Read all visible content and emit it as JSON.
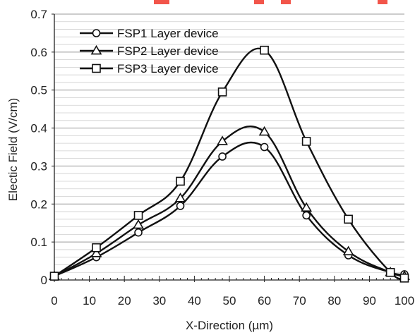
{
  "chart_data": {
    "type": "line",
    "title": "",
    "xlabel": "X-Direction (µm)",
    "ylabel": "Electic Field (V/cm)",
    "xlim": [
      0,
      100
    ],
    "ylim": [
      0,
      0.7
    ],
    "xticks": [
      "0",
      "10",
      "20",
      "30",
      "40",
      "50",
      "60",
      "70",
      "80",
      "90",
      "100"
    ],
    "yticks": [
      "0",
      "0.1",
      "0.2",
      "0.3",
      "0.4",
      "0.5",
      "0.6",
      "0.7"
    ],
    "grid": "horizontal",
    "legend_position": "top-left",
    "series": [
      {
        "name": "FSP1 Layer device",
        "marker": "circle",
        "color": "#111111",
        "x": [
          0,
          12,
          24,
          36,
          48,
          60,
          72,
          84,
          96,
          100
        ],
        "y": [
          0.01,
          0.06,
          0.125,
          0.195,
          0.325,
          0.35,
          0.17,
          0.065,
          0.02,
          0.015
        ]
      },
      {
        "name": "FSP2 Layer device",
        "marker": "triangle",
        "color": "#111111",
        "x": [
          0,
          12,
          24,
          36,
          48,
          60,
          72,
          84,
          96,
          100
        ],
        "y": [
          0.01,
          0.07,
          0.145,
          0.215,
          0.365,
          0.39,
          0.19,
          0.075,
          0.02,
          0.01
        ]
      },
      {
        "name": "FSP3 Layer device",
        "marker": "square",
        "color": "#111111",
        "x": [
          0,
          12,
          24,
          36,
          48,
          60,
          72,
          84,
          96,
          100
        ],
        "y": [
          0.01,
          0.085,
          0.17,
          0.26,
          0.495,
          0.605,
          0.365,
          0.16,
          0.02,
          0.005
        ]
      }
    ]
  }
}
